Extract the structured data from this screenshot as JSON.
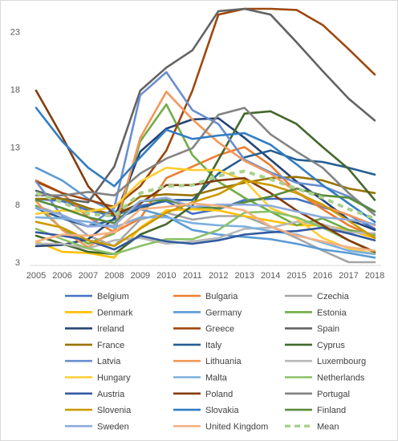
{
  "chart_data": {
    "type": "line",
    "title": "",
    "xlabel": "",
    "ylabel": "",
    "x": [
      "2005",
      "2006",
      "2007",
      "2008",
      "2009",
      "2010",
      "2011",
      "2012",
      "2013",
      "2014",
      "2015",
      "2016",
      "2017",
      "2018"
    ],
    "ylim": [
      3,
      25
    ],
    "yticks": [
      3,
      8,
      13,
      18,
      23
    ],
    "grid": false,
    "legend_position": "bottom",
    "series": [
      {
        "name": "Belgium",
        "color": "#4472c4",
        "values": [
          8.5,
          8.3,
          7.5,
          7.0,
          7.9,
          8.3,
          7.2,
          7.6,
          8.4,
          8.5,
          8.5,
          7.8,
          7.1,
          5.9
        ]
      },
      {
        "name": "Bulgaria",
        "color": "#ed7d31",
        "values": [
          10.1,
          9.0,
          6.9,
          5.6,
          6.8,
          10.3,
          11.3,
          12.3,
          13.0,
          11.4,
          9.1,
          7.6,
          6.2,
          5.2
        ]
      },
      {
        "name": "Czechia",
        "color": "#a5a5a5",
        "values": [
          7.9,
          7.1,
          5.3,
          4.4,
          6.7,
          7.3,
          6.7,
          7.0,
          7.0,
          6.1,
          5.1,
          4.0,
          2.9,
          2.2
        ]
      },
      {
        "name": "Denmark",
        "color": "#ffc000",
        "values": [
          4.8,
          3.9,
          3.8,
          3.4,
          6.0,
          7.5,
          7.6,
          7.5,
          7.0,
          6.6,
          6.2,
          6.2,
          5.8,
          5.1
        ]
      },
      {
        "name": "Germany",
        "color": "#5b9bd5",
        "values": [
          11.2,
          10.1,
          8.5,
          7.4,
          7.6,
          7.0,
          5.8,
          5.4,
          5.2,
          5.0,
          4.6,
          4.1,
          3.8,
          3.4
        ]
      },
      {
        "name": "Estonia",
        "color": "#70ad47",
        "values": [
          7.9,
          5.9,
          4.6,
          5.5,
          13.5,
          16.7,
          12.3,
          10.0,
          8.6,
          7.4,
          6.2,
          6.8,
          5.8,
          5.4
        ]
      },
      {
        "name": "Ireland",
        "color": "#264478",
        "values": [
          4.4,
          4.5,
          5.0,
          6.8,
          12.6,
          14.6,
          15.4,
          15.5,
          13.8,
          11.9,
          10.0,
          8.4,
          6.7,
          5.8
        ]
      },
      {
        "name": "Greece",
        "color": "#9e480e",
        "values": [
          10.0,
          9.0,
          8.4,
          7.8,
          9.6,
          12.7,
          17.9,
          24.5,
          27.5,
          26.5,
          24.9,
          23.6,
          21.5,
          19.3
        ]
      },
      {
        "name": "Spain",
        "color": "#636363",
        "values": [
          9.2,
          8.5,
          8.2,
          11.3,
          17.9,
          19.9,
          21.4,
          24.8,
          26.1,
          24.5,
          22.1,
          19.6,
          17.2,
          15.3
        ]
      },
      {
        "name": "France",
        "color": "#997300",
        "values": [
          8.5,
          8.5,
          7.7,
          7.1,
          8.7,
          8.9,
          8.8,
          9.4,
          9.9,
          10.3,
          10.4,
          10.1,
          9.4,
          9.0
        ]
      },
      {
        "name": "Italy",
        "color": "#255e91",
        "values": [
          7.7,
          6.8,
          6.1,
          6.7,
          7.7,
          8.4,
          8.4,
          10.7,
          12.1,
          12.7,
          11.9,
          11.7,
          11.2,
          10.6
        ]
      },
      {
        "name": "Cyprus",
        "color": "#43682b",
        "values": [
          5.3,
          4.6,
          3.9,
          3.7,
          5.4,
          6.3,
          7.9,
          11.9,
          15.9,
          16.1,
          15.0,
          13.0,
          11.1,
          8.4
        ]
      },
      {
        "name": "Latvia",
        "color": "#698ed0",
        "values": [
          10.0,
          7.0,
          6.1,
          7.7,
          17.5,
          19.5,
          16.2,
          15.0,
          11.9,
          10.8,
          9.9,
          9.6,
          8.7,
          7.4
        ]
      },
      {
        "name": "Lithuania",
        "color": "#f1975a",
        "values": [
          8.3,
          5.8,
          4.3,
          5.8,
          13.8,
          17.8,
          15.4,
          13.4,
          11.8,
          10.7,
          9.1,
          7.9,
          7.1,
          6.2
        ]
      },
      {
        "name": "Luxembourg",
        "color": "#b7b7b7",
        "values": [
          4.6,
          4.6,
          4.2,
          4.9,
          5.1,
          4.6,
          4.8,
          5.1,
          5.9,
          6.0,
          6.5,
          6.3,
          5.6,
          5.5
        ]
      },
      {
        "name": "Hungary",
        "color": "#ffcd33",
        "values": [
          7.2,
          7.5,
          7.4,
          7.8,
          10.0,
          11.2,
          11.0,
          11.0,
          10.1,
          7.7,
          6.8,
          5.1,
          4.2,
          3.7
        ]
      },
      {
        "name": "Malta",
        "color": "#7cafdd",
        "values": [
          6.9,
          6.8,
          6.5,
          6.0,
          6.9,
          6.9,
          6.4,
          6.2,
          6.1,
          5.7,
          5.4,
          4.7,
          4.0,
          3.7
        ]
      },
      {
        "name": "Netherlands",
        "color": "#8cc168",
        "values": [
          5.9,
          5.0,
          4.2,
          3.7,
          4.4,
          5.0,
          5.0,
          5.8,
          7.3,
          7.4,
          6.9,
          6.0,
          4.9,
          3.8
        ]
      },
      {
        "name": "Austria",
        "color": "#335aa1",
        "values": [
          5.6,
          5.3,
          4.9,
          4.1,
          5.3,
          4.8,
          4.6,
          4.9,
          5.4,
          5.6,
          5.7,
          6.0,
          5.5,
          4.9
        ]
      },
      {
        "name": "Poland",
        "color": "#843c0c",
        "values": [
          17.9,
          13.9,
          9.6,
          7.1,
          8.1,
          9.7,
          9.7,
          10.1,
          10.3,
          9.0,
          7.5,
          6.2,
          4.9,
          3.9
        ]
      },
      {
        "name": "Portugal",
        "color": "#838383",
        "values": [
          8.8,
          8.8,
          9.1,
          8.8,
          10.7,
          12.0,
          12.9,
          15.8,
          16.4,
          14.1,
          12.6,
          11.2,
          9.0,
          7.1
        ]
      },
      {
        "name": "Slovenia",
        "color": "#cc9a00",
        "values": [
          6.5,
          6.0,
          4.9,
          4.4,
          5.9,
          7.3,
          8.2,
          8.9,
          10.1,
          9.7,
          9.0,
          8.0,
          6.6,
          5.1
        ]
      },
      {
        "name": "Slovakia",
        "color": "#327dc2",
        "values": [
          16.4,
          13.5,
          11.2,
          9.6,
          12.1,
          14.5,
          13.7,
          14.0,
          14.2,
          13.2,
          11.5,
          9.7,
          8.1,
          6.5
        ]
      },
      {
        "name": "Finland",
        "color": "#5a8a3a",
        "values": [
          8.4,
          7.7,
          6.9,
          6.4,
          8.3,
          8.4,
          7.8,
          7.7,
          8.2,
          8.7,
          9.4,
          8.8,
          8.6,
          7.4
        ]
      },
      {
        "name": "Sweden",
        "color": "#8faadc",
        "values": [
          7.7,
          7.1,
          6.1,
          6.2,
          8.3,
          8.6,
          7.8,
          8.0,
          8.0,
          7.9,
          7.4,
          6.9,
          6.7,
          6.3
        ]
      },
      {
        "name": "United Kingdom",
        "color": "#f4b183",
        "values": [
          4.8,
          5.4,
          5.3,
          5.6,
          7.6,
          7.8,
          8.1,
          7.9,
          7.5,
          6.1,
          5.3,
          4.8,
          4.3,
          4.0
        ]
      },
      {
        "name": "Mean",
        "color": "#a9d18e",
        "dashed": true,
        "values": [
          9.0,
          8.2,
          7.2,
          7.0,
          9.0,
          9.6,
          9.7,
          10.5,
          10.9,
          10.2,
          9.4,
          8.6,
          7.6,
          6.8
        ]
      }
    ]
  }
}
